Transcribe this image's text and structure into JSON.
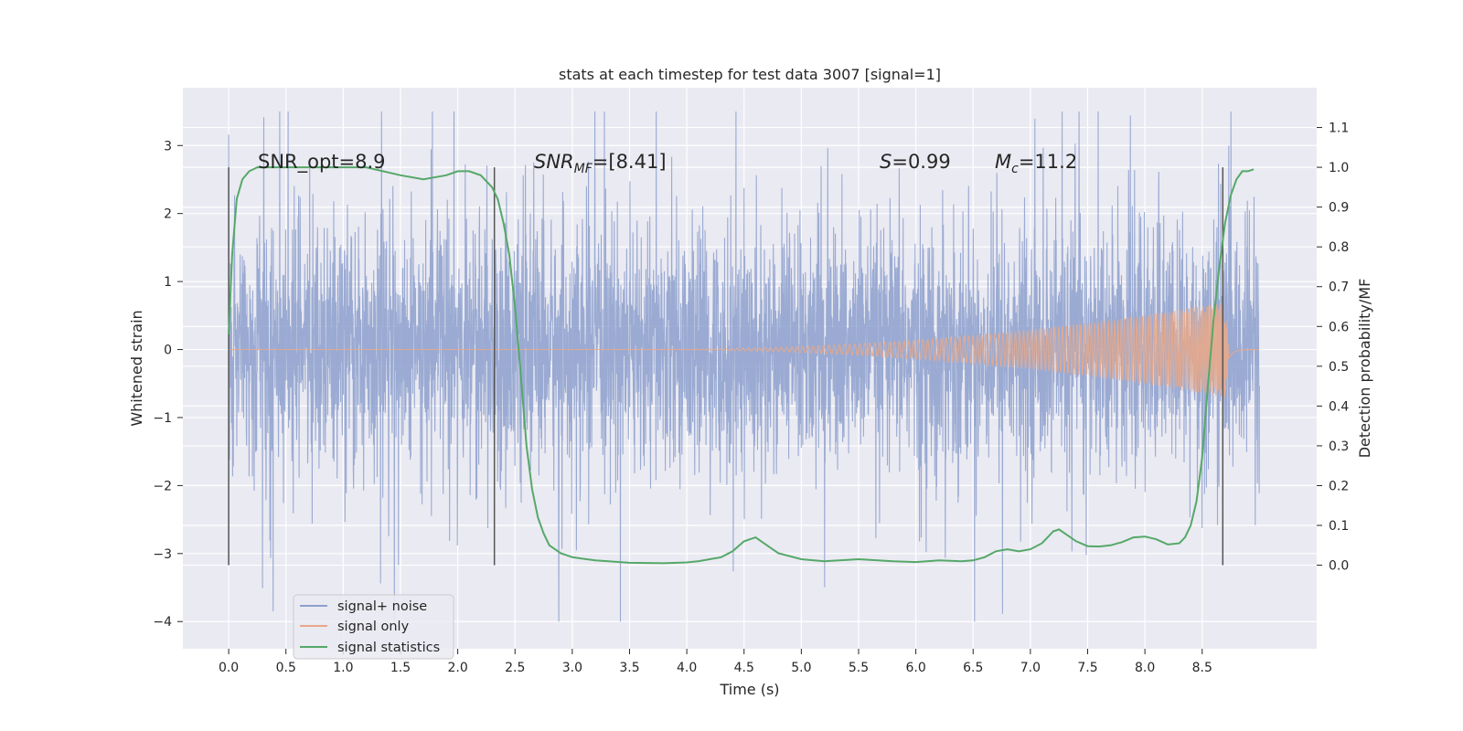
{
  "chart_data": {
    "type": "line",
    "title": "stats at each timestep for test data 3007 [signal=1]",
    "xlabel": "Time (s)",
    "ylabel": "Whitened strain",
    "y2label": "Detection probability/MF",
    "xlim": [
      -0.4,
      9.5
    ],
    "ylim": [
      -4.4,
      3.85
    ],
    "y2lim": [
      -0.21,
      1.2
    ],
    "xticks": [
      "0.0",
      "0.5",
      "1.0",
      "1.5",
      "2.0",
      "2.5",
      "3.0",
      "3.5",
      "4.0",
      "4.5",
      "5.0",
      "5.5",
      "6.0",
      "6.5",
      "7.0",
      "7.5",
      "8.0",
      "8.5"
    ],
    "yticks": [
      "−4",
      "−3",
      "−2",
      "−1",
      "0",
      "1",
      "2",
      "3"
    ],
    "y2ticks": [
      "0.0",
      "0.1",
      "0.2",
      "0.3",
      "0.4",
      "0.5",
      "0.6",
      "0.7",
      "0.8",
      "0.9",
      "1.0",
      "1.1"
    ],
    "grid": true,
    "legend_position": "lower-left",
    "annotations": {
      "snr_opt": "SNR_opt=8.9",
      "snr_mf_pre": "SNR",
      "snr_mf_sub": "MF",
      "snr_mf_post": "=[8.41]",
      "s_pre": "S",
      "s_post": "=0.99",
      "mc_pre": "M",
      "mc_sub": "c",
      "mc_post": "=11.2"
    },
    "vertical_lines_x": [
      0.0,
      2.32,
      8.68
    ],
    "series": [
      {
        "name": "signal+ noise",
        "color": "#8c9fcc",
        "time_range": [
          0.0,
          9.0
        ],
        "envelope_typical": [
          -1.5,
          1.5
        ],
        "extreme_range": [
          -4.0,
          3.5
        ]
      },
      {
        "name": "signal only",
        "color": "#dd8452",
        "time_range": [
          0.0,
          9.0
        ],
        "amplitude_start": 0.0,
        "amplitude_peak": 0.7,
        "peak_time": 8.7
      },
      {
        "name": "signal statistics",
        "color": "#55a868",
        "axis": "right",
        "x": [
          0.0,
          0.03,
          0.07,
          0.12,
          0.18,
          0.25,
          0.35,
          0.5,
          0.8,
          1.2,
          1.5,
          1.7,
          1.9,
          2.0,
          2.1,
          2.2,
          2.3,
          2.35,
          2.4,
          2.45,
          2.5,
          2.55,
          2.6,
          2.65,
          2.7,
          2.75,
          2.8,
          2.9,
          3.0,
          3.2,
          3.5,
          3.8,
          4.0,
          4.1,
          4.2,
          4.3,
          4.4,
          4.5,
          4.6,
          4.7,
          4.8,
          5.0,
          5.2,
          5.5,
          5.8,
          6.0,
          6.2,
          6.4,
          6.5,
          6.6,
          6.7,
          6.8,
          6.9,
          7.0,
          7.1,
          7.15,
          7.2,
          7.25,
          7.3,
          7.4,
          7.5,
          7.6,
          7.7,
          7.8,
          7.9,
          8.0,
          8.1,
          8.2,
          8.3,
          8.35,
          8.4,
          8.45,
          8.5,
          8.55,
          8.6,
          8.65,
          8.7,
          8.75,
          8.8,
          8.85,
          8.9,
          8.95
        ],
        "values": [
          0.58,
          0.78,
          0.92,
          0.97,
          0.99,
          1.0,
          1.0,
          1.0,
          1.0,
          1.0,
          0.98,
          0.97,
          0.98,
          0.99,
          0.99,
          0.98,
          0.95,
          0.92,
          0.86,
          0.78,
          0.65,
          0.48,
          0.3,
          0.19,
          0.12,
          0.08,
          0.05,
          0.03,
          0.02,
          0.012,
          0.006,
          0.005,
          0.007,
          0.01,
          0.015,
          0.02,
          0.035,
          0.06,
          0.07,
          0.05,
          0.03,
          0.015,
          0.01,
          0.015,
          0.01,
          0.008,
          0.012,
          0.01,
          0.012,
          0.02,
          0.035,
          0.04,
          0.035,
          0.04,
          0.055,
          0.07,
          0.085,
          0.09,
          0.08,
          0.06,
          0.048,
          0.047,
          0.05,
          0.058,
          0.07,
          0.072,
          0.065,
          0.052,
          0.055,
          0.07,
          0.1,
          0.16,
          0.27,
          0.45,
          0.62,
          0.75,
          0.86,
          0.93,
          0.97,
          0.99,
          0.99,
          0.995
        ]
      }
    ]
  }
}
